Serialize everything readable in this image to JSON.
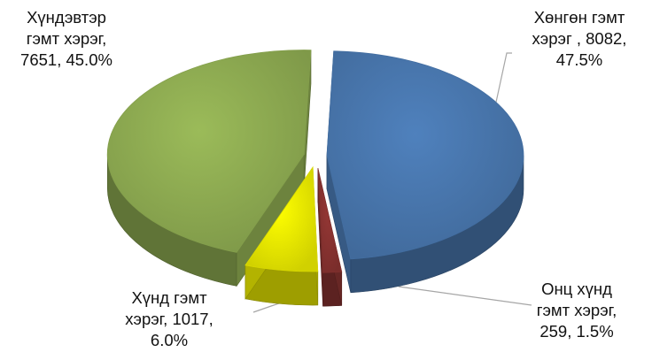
{
  "chart_data": {
    "type": "pie",
    "title": "",
    "legend": "none",
    "series": [
      {
        "categories": [
          "Хөнгөн гэмт хэрэг",
          "Онц хүнд гэмт хэрэг",
          "Хүнд гэмт хэрэг",
          "Хүндэвтэр гэмт хэрэг"
        ],
        "values": [
          8082,
          259,
          1017,
          7651
        ],
        "percents": [
          "47.5%",
          "1.5%",
          "6.0%",
          "45.0%"
        ],
        "colors": [
          "#4f81bd",
          "#953735",
          "#ffff00",
          "#9bbb59"
        ]
      }
    ],
    "data_labels": [
      {
        "lines": [
          "Хөнгөн гэмт",
          "хэрэг , 8082,",
          "47.5%"
        ]
      },
      {
        "lines": [
          "Онц хүнд",
          "гэмт хэрэг,",
          "259, 1.5%"
        ]
      },
      {
        "lines": [
          "Хүнд гэмт",
          "хэрэг, 1017,",
          "6.0%"
        ]
      },
      {
        "lines": [
          "Хүндэвтэр",
          "гэмт хэрэг,",
          "7651, 45.0%"
        ]
      }
    ]
  }
}
